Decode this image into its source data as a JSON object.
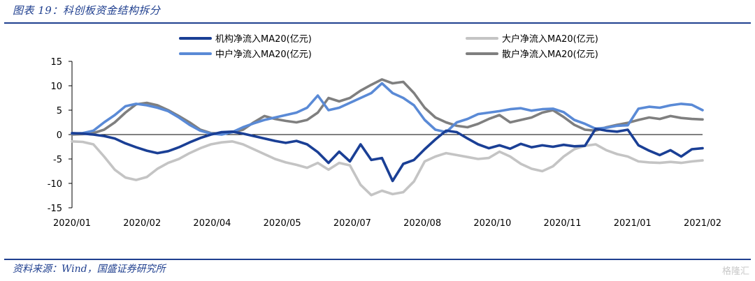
{
  "header": {
    "title": "图表 19：科创板资金结构拆分"
  },
  "footer": {
    "source": "资料来源：Wind，国盛证券研究所",
    "watermark": "格隆汇"
  },
  "chart_data": {
    "type": "line",
    "title": "科创板资金结构拆分",
    "xlabel": "",
    "ylabel": "亿元",
    "ylim": [
      -15,
      15
    ],
    "yticks": [
      15,
      10,
      5,
      0,
      -5,
      -10,
      -15
    ],
    "x_ticks": [
      "2020/01",
      "2020/02",
      "2020/04",
      "2020/05",
      "2020/07",
      "2020/08",
      "2020/10",
      "2020/11",
      "2021/01",
      "2021/02"
    ],
    "series": [
      {
        "name": "机构净流入MA20(亿元)",
        "color": "#1a3f95",
        "values": [
          0.3,
          0.2,
          0.0,
          -0.3,
          -0.8,
          -1.8,
          -2.6,
          -3.3,
          -3.8,
          -3.4,
          -2.6,
          -1.6,
          -0.7,
          0.0,
          0.5,
          0.6,
          0.2,
          -0.3,
          -0.8,
          -1.3,
          -1.7,
          -1.3,
          -2.0,
          -3.6,
          -5.8,
          -3.5,
          -5.5,
          -2.0,
          -5.2,
          -4.8,
          -9.5,
          -6.0,
          -5.2,
          -3.0,
          -1.0,
          0.8,
          0.5,
          -0.8,
          -2.0,
          -2.8,
          -2.2,
          -2.9,
          -1.9,
          -2.6,
          -2.2,
          -2.5,
          -2.1,
          -2.4,
          -2.3,
          1.2,
          0.8,
          0.6,
          1.0,
          -2.2,
          -3.3,
          -4.2,
          -3.2,
          -4.5,
          -3.0,
          -2.8
        ]
      },
      {
        "name": "大户净流入MA20(亿元)",
        "color": "#c4c4c4",
        "values": [
          -1.4,
          -1.5,
          -2.0,
          -4.5,
          -7.2,
          -8.8,
          -9.3,
          -8.7,
          -7.0,
          -5.8,
          -5.0,
          -3.8,
          -2.8,
          -2.0,
          -1.6,
          -1.4,
          -2.0,
          -3.0,
          -4.0,
          -5.0,
          -5.7,
          -6.2,
          -6.8,
          -5.8,
          -7.2,
          -5.8,
          -6.3,
          -10.3,
          -12.4,
          -11.5,
          -12.2,
          -11.8,
          -9.6,
          -5.5,
          -4.5,
          -3.8,
          -4.2,
          -4.6,
          -5.0,
          -4.8,
          -3.5,
          -4.5,
          -6.0,
          -7.0,
          -7.5,
          -6.5,
          -4.5,
          -3.0,
          -2.3,
          -2.0,
          -3.2,
          -4.0,
          -4.5,
          -5.5,
          -5.7,
          -5.8,
          -5.6,
          -5.8,
          -5.5,
          -5.3
        ]
      },
      {
        "name": "中户净流入MA20(亿元)",
        "color": "#5a8ad6",
        "values": [
          0.2,
          0.3,
          0.8,
          2.5,
          4.0,
          5.8,
          6.3,
          6.0,
          5.5,
          4.8,
          3.5,
          2.0,
          0.8,
          0.2,
          0.0,
          0.5,
          1.5,
          2.3,
          3.0,
          3.5,
          4.0,
          4.5,
          5.5,
          8.0,
          5.0,
          5.5,
          6.5,
          7.5,
          8.5,
          10.5,
          8.5,
          7.5,
          6.0,
          3.0,
          1.0,
          0.5,
          2.5,
          3.2,
          4.2,
          4.5,
          4.8,
          5.2,
          5.4,
          4.9,
          5.2,
          5.3,
          4.6,
          3.0,
          2.2,
          1.2,
          1.4,
          1.8,
          1.9,
          5.3,
          5.7,
          5.5,
          6.0,
          6.3,
          6.1,
          5.0
        ]
      },
      {
        "name": "散户净流入MA20(亿元)",
        "color": "#7f7f7f",
        "values": [
          0.0,
          0.1,
          0.3,
          1.0,
          2.5,
          4.5,
          6.2,
          6.5,
          6.0,
          5.0,
          3.8,
          2.5,
          1.0,
          0.3,
          0.2,
          0.5,
          1.0,
          2.5,
          3.8,
          3.2,
          2.8,
          2.5,
          3.0,
          4.5,
          7.5,
          6.8,
          7.5,
          9.0,
          10.2,
          11.3,
          10.5,
          10.8,
          8.5,
          5.5,
          3.5,
          2.5,
          1.8,
          1.5,
          2.2,
          3.2,
          4.0,
          2.5,
          3.0,
          3.5,
          4.5,
          5.0,
          3.6,
          2.0,
          1.0,
          0.8,
          1.5,
          2.0,
          2.4,
          3.0,
          3.5,
          3.2,
          3.8,
          3.4,
          3.2,
          3.1
        ]
      }
    ],
    "legend_position": "top"
  }
}
